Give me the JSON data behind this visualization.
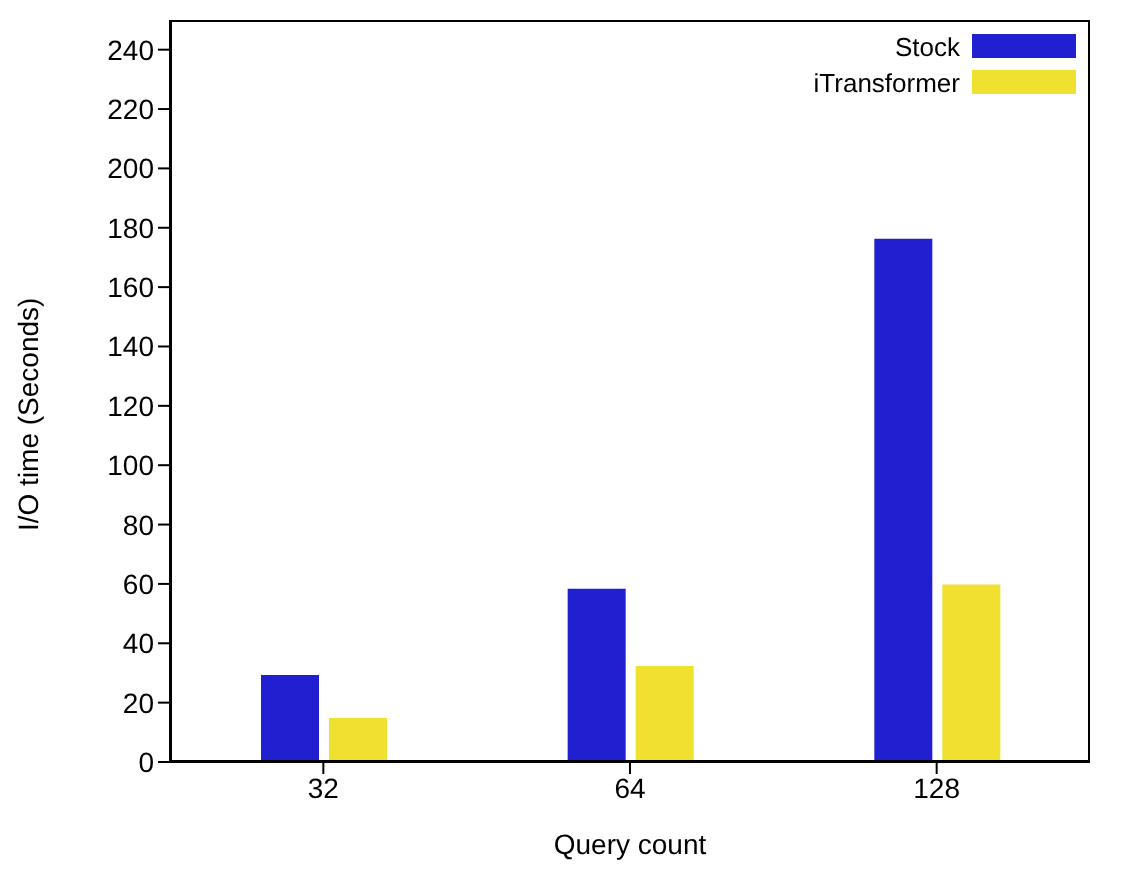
{
  "chart_data": {
    "type": "bar",
    "xlabel": "Query count",
    "ylabel": "I/O time (Seconds)",
    "categories": [
      "32",
      "64",
      "128"
    ],
    "series": [
      {
        "name": "Stock",
        "color": "#2020d0",
        "values": [
          29,
          58,
          176
        ]
      },
      {
        "name": "iTransformer",
        "color": "#f0e030",
        "values": [
          14.5,
          32,
          59.5
        ]
      }
    ],
    "ylim": [
      0,
      250
    ],
    "yticks": [
      0,
      20,
      40,
      60,
      80,
      100,
      120,
      140,
      160,
      180,
      200,
      220,
      240
    ],
    "grid": false,
    "legend": "top right"
  }
}
